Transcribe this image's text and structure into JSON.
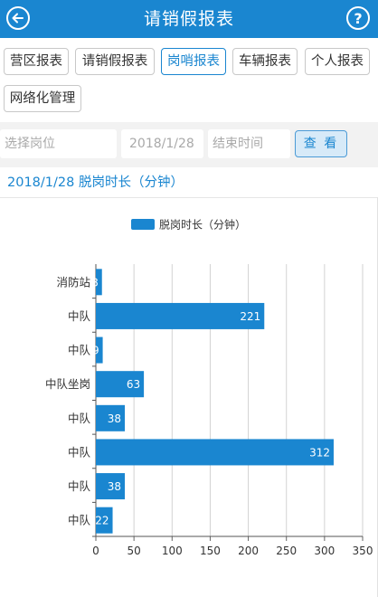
{
  "header": {
    "title": "请销假报表",
    "back_icon": "arrow-left-circle-icon",
    "help_label": "?"
  },
  "tabs": [
    {
      "label": "营区报表",
      "active": false
    },
    {
      "label": "请销假报表",
      "active": false
    },
    {
      "label": "岗哨报表",
      "active": true
    },
    {
      "label": "车辆报表",
      "active": false
    },
    {
      "label": "个人报表",
      "active": false
    },
    {
      "label": "网络化管理",
      "active": false
    }
  ],
  "filters": {
    "post_placeholder": "选择岗位",
    "start_date": "2018/1/28",
    "end_placeholder": "结束时间",
    "query_label": "查 看"
  },
  "section_title": "2018/1/28 脱岗时长（分钟）",
  "chart_data": {
    "type": "bar",
    "orientation": "horizontal",
    "categories": [
      "消防站",
      "中队",
      "中队",
      "中队坐岗",
      "中队",
      "中队",
      "中队",
      "中队"
    ],
    "series": [
      {
        "name": "脱岗时长（分钟）",
        "values": [
          8,
          221,
          9,
          63,
          38,
          312,
          38,
          22
        ],
        "color": "#1a86d0"
      }
    ],
    "xlim": [
      0,
      350
    ],
    "xticks": [
      0,
      50,
      100,
      150,
      200,
      250,
      300,
      350
    ],
    "grid": true,
    "legend": "top-center",
    "data_labels": true
  }
}
